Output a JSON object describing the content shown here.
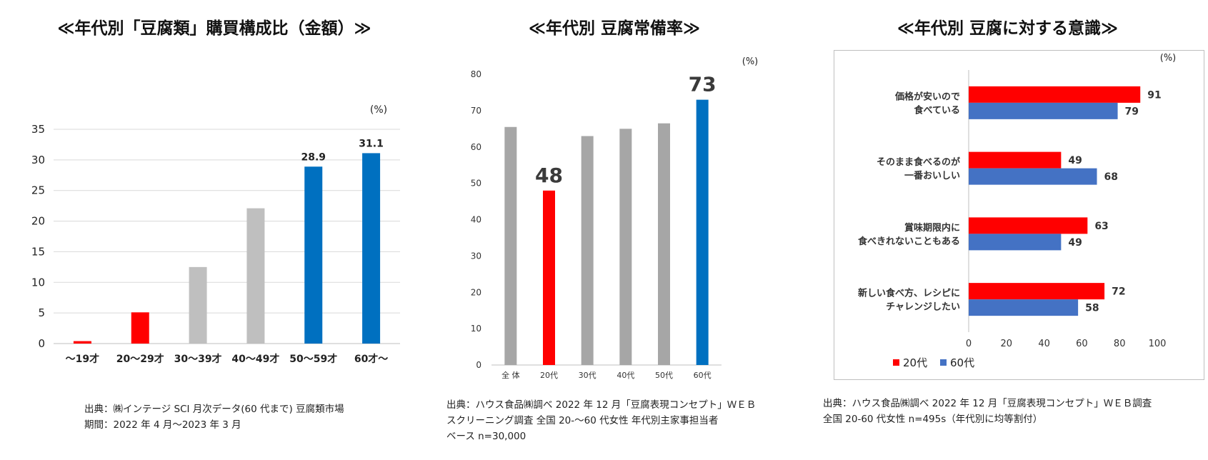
{
  "chart_data": [
    {
      "type": "bar",
      "title": "≪年代別「豆腐類」購買構成比（金額）≫",
      "unit_label": "(%)",
      "categories": [
        "～19才",
        "20～29才",
        "30～39才",
        "40～49才",
        "50～59才",
        "60才～"
      ],
      "values": [
        0.4,
        5.1,
        12.5,
        22.1,
        28.9,
        31.1
      ],
      "bar_colors": [
        "#ff0000",
        "#ff0000",
        "#bfbfbf",
        "#bfbfbf",
        "#0070c0",
        "#0070c0"
      ],
      "data_labels": [
        "",
        "",
        "",
        "",
        "28.9",
        "31.1"
      ],
      "y_ticks": [
        "0",
        "5",
        "10",
        "15",
        "20",
        "25",
        "30",
        "35"
      ],
      "ylim": [
        0,
        35
      ],
      "grid": true,
      "source": [
        "出典：㈱インテージ SCI 月次データ(60 代まで) 豆腐類市場",
        "期間：2022 年 4 月～2023 年 3 月"
      ]
    },
    {
      "type": "bar",
      "title": "≪年代別 豆腐常備率≫",
      "unit_label": "(%)",
      "categories": [
        "全 体",
        "20代",
        "30代",
        "40代",
        "50代",
        "60代"
      ],
      "values": [
        65.5,
        48,
        63,
        65,
        66.5,
        73
      ],
      "bar_colors": [
        "#a6a6a6",
        "#ff0000",
        "#a6a6a6",
        "#a6a6a6",
        "#a6a6a6",
        "#0070c0"
      ],
      "data_labels": [
        "",
        "48",
        "",
        "",
        "",
        "73"
      ],
      "y_ticks": [
        "0",
        "10",
        "20",
        "30",
        "40",
        "50",
        "60",
        "70",
        "80"
      ],
      "ylim": [
        0,
        80
      ],
      "grid": false,
      "source": [
        "出典：ハウス食品㈱調べ 2022 年 12 月「豆腐表現コンセプト」ＷＥＢ",
        "スクリーニング調査 全国 20-～60 代女性 年代別主家事担当者",
        "ベース n=30,000"
      ]
    },
    {
      "type": "bar",
      "orientation": "horizontal",
      "title": "≪年代別 豆腐に対する意識≫",
      "unit_label": "(%)",
      "categories": [
        [
          "価格が安いので",
          "食べている"
        ],
        [
          "そのまま食べるのが",
          "一番おいしい"
        ],
        [
          "賞味期限内に",
          "食べきれないこともある"
        ],
        [
          "新しい食べ方、レシピに",
          "チャレンジしたい"
        ]
      ],
      "series": [
        {
          "name": "20代",
          "values": [
            91,
            49,
            63,
            72
          ],
          "color": "#ff0000"
        },
        {
          "name": "60代",
          "values": [
            79,
            68,
            49,
            58
          ],
          "color": "#4472c4"
        }
      ],
      "x_ticks": [
        "0",
        "20",
        "40",
        "60",
        "80",
        "100"
      ],
      "xlim": [
        0,
        100
      ],
      "grid": false,
      "legend": "bottom-left",
      "source": [
        "出典：ハウス食品㈱調べ 2022 年 12 月「豆腐表現コンセプト」ＷＥＢ調査",
        "全国 20-60 代女性 n=495s（年代別に均等割付）"
      ]
    }
  ]
}
